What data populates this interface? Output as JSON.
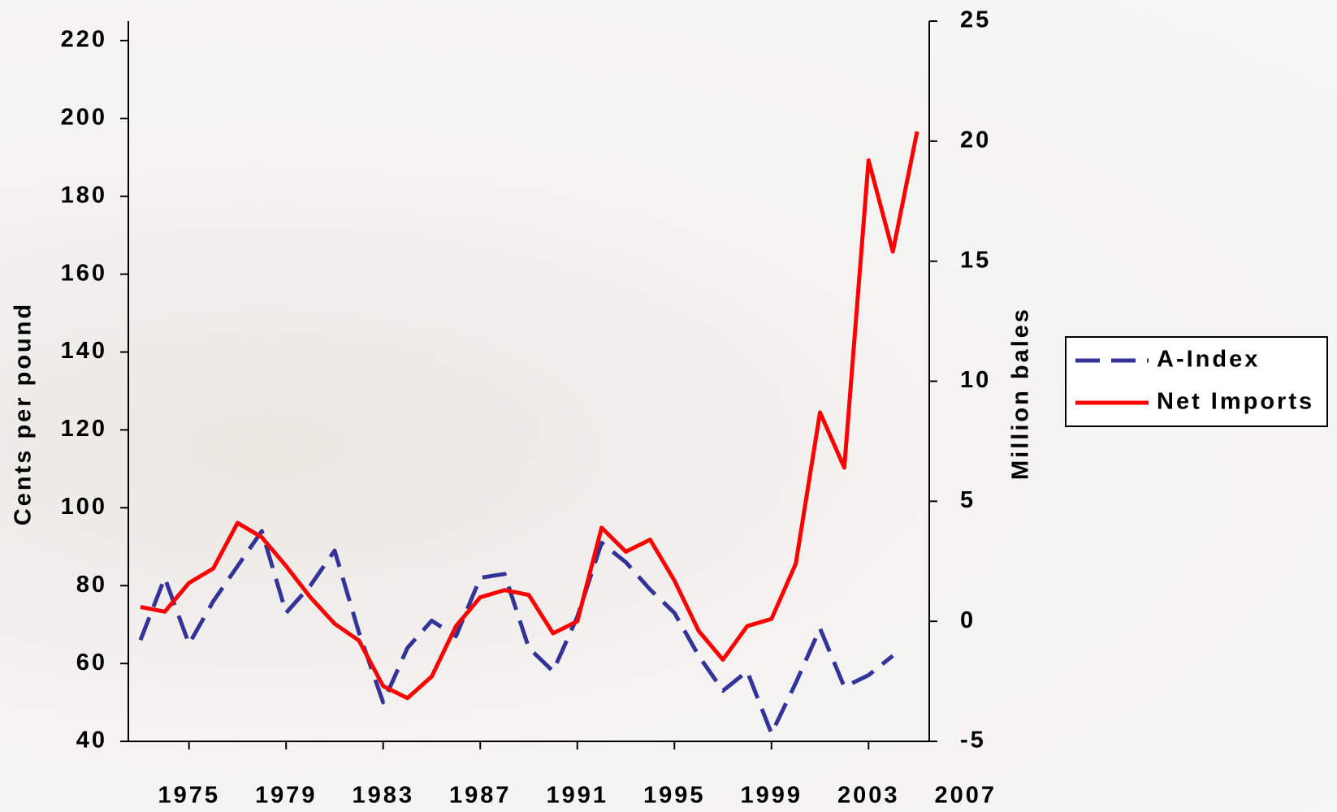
{
  "chart_data": {
    "type": "line",
    "x": [
      1973,
      1974,
      1975,
      1976,
      1977,
      1978,
      1979,
      1980,
      1981,
      1982,
      1983,
      1984,
      1985,
      1986,
      1987,
      1988,
      1989,
      1990,
      1991,
      1992,
      1993,
      1994,
      1995,
      1996,
      1997,
      1998,
      1999,
      2000,
      2001,
      2002,
      2003,
      2004,
      2005
    ],
    "xlim": [
      1972.5,
      2005.5
    ],
    "xticks": [
      1975,
      1979,
      1983,
      1987,
      1991,
      1995,
      1999,
      2003,
      2007
    ],
    "y_label": "Cents per pound",
    "ylim": [
      40,
      225
    ],
    "yticks": [
      40,
      60,
      80,
      100,
      120,
      140,
      160,
      180,
      200,
      220
    ],
    "y2_label": "Million bales",
    "y2lim": [
      -5,
      25
    ],
    "y2ticks": [
      -5,
      0,
      5,
      10,
      15,
      20,
      25
    ],
    "legend": "right",
    "series": [
      {
        "name": "A-Index",
        "color": "#333399",
        "dash": true,
        "values": [
          66,
          82,
          65,
          76,
          85,
          94,
          73,
          80,
          89,
          68,
          50,
          64,
          71,
          67,
          82,
          83,
          64,
          58,
          72,
          91,
          86,
          79,
          73,
          62,
          53,
          58,
          42,
          55,
          69,
          54,
          57,
          62,
          null
        ]
      },
      {
        "name": "Net Imports",
        "color": "#ff0000",
        "axis": "y2",
        "values": [
          0.6,
          0.4,
          1.6,
          2.2,
          4.1,
          3.5,
          2.3,
          1.0,
          -0.1,
          -0.8,
          -2.7,
          -3.2,
          -2.3,
          -0.2,
          1.0,
          1.3,
          1.1,
          -0.5,
          0,
          3.9,
          2.9,
          3.4,
          1.7,
          -0.4,
          -1.6,
          -0.2,
          0.1,
          2.4,
          8.7,
          6.4,
          19.2,
          15.4,
          20.4
        ]
      }
    ]
  }
}
